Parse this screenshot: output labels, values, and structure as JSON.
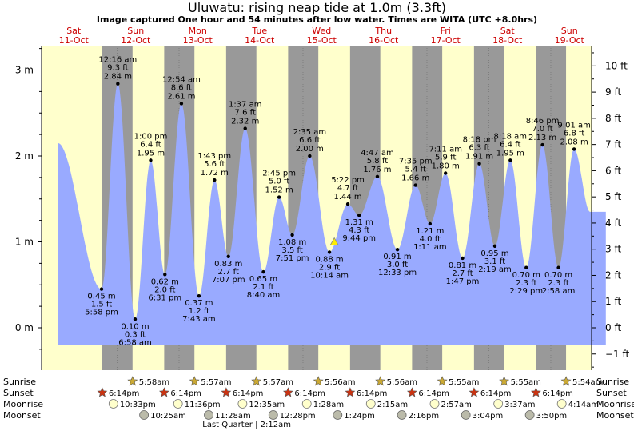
{
  "header": {
    "title": "Uluwatu: rising  neap tide at 1.0m (3.3ft)",
    "subtitle": "Image captured One hour and 54 minutes after low water. Times are WITA (UTC +8.0hrs)"
  },
  "colors": {
    "day_bg": "#ffffcc",
    "night_bg": "#999999",
    "tide_fill": "#99aaff",
    "day_label": "#cc0000",
    "sun_icon": "#ccaa33",
    "sunset_icon": "#cc3311",
    "moonrise_icon": "#ffffcc",
    "moonset_icon": "#bbbbaa"
  },
  "chart_data": {
    "type": "area",
    "title": "Uluwatu: rising  neap tide at 1.0m (3.3ft)",
    "ylabel_left": "m",
    "ylabel_right": "ft",
    "ylim": [
      -0.3,
      3.3
    ],
    "left_ticks": [
      "0 m",
      "1 m",
      "2 m",
      "3 m"
    ],
    "right_ticks": [
      "−1 ft",
      "0 ft",
      "1 ft",
      "2 ft",
      "3 ft",
      "4 ft",
      "5 ft",
      "6 ft",
      "7 ft",
      "8 ft",
      "9 ft",
      "10 ft"
    ],
    "x_unit": "hours since 2025-10-11 00:00 WITA",
    "days": [
      {
        "dow": "Sat",
        "date": "11-Oct"
      },
      {
        "dow": "Sun",
        "date": "12-Oct"
      },
      {
        "dow": "Mon",
        "date": "13-Oct"
      },
      {
        "dow": "Tue",
        "date": "14-Oct"
      },
      {
        "dow": "Wed",
        "date": "15-Oct"
      },
      {
        "dow": "Thu",
        "date": "16-Oct"
      },
      {
        "dow": "Fri",
        "date": "17-Oct"
      },
      {
        "dow": "Sat",
        "date": "18-Oct"
      },
      {
        "dow": "Sun",
        "date": "19-Oct"
      }
    ],
    "current_level_m": 1.0,
    "extremes": [
      {
        "kind": "low",
        "time": "5:58 pm",
        "m": 0.45,
        "m_label": "0.45 m",
        "ft": "1.5 ft"
      },
      {
        "kind": "high",
        "time": "12:16 am",
        "m": 2.84,
        "m_label": "2.84 m",
        "ft": "9.3 ft"
      },
      {
        "kind": "low",
        "time": "6:58 am",
        "m": 0.1,
        "m_label": "0.10 m",
        "ft": "0.3 ft"
      },
      {
        "kind": "high",
        "time": "1:00 pm",
        "m": 1.95,
        "m_label": "1.95 m",
        "ft": "6.4 ft"
      },
      {
        "kind": "low",
        "time": "6:31 pm",
        "m": 0.62,
        "m_label": "0.62 m",
        "ft": "2.0 ft"
      },
      {
        "kind": "high",
        "time": "12:54 am",
        "m": 2.61,
        "m_label": "2.61 m",
        "ft": "8.6 ft"
      },
      {
        "kind": "low",
        "time": "7:43 am",
        "m": 0.37,
        "m_label": "0.37 m",
        "ft": "1.2 ft"
      },
      {
        "kind": "high",
        "time": "1:43 pm",
        "m": 1.72,
        "m_label": "1.72 m",
        "ft": "5.6 ft"
      },
      {
        "kind": "low",
        "time": "7:07 pm",
        "m": 0.83,
        "m_label": "0.83 m",
        "ft": "2.7 ft"
      },
      {
        "kind": "high",
        "time": "1:37 am",
        "m": 2.32,
        "m_label": "2.32 m",
        "ft": "7.6 ft"
      },
      {
        "kind": "low",
        "time": "8:40 am",
        "m": 0.65,
        "m_label": "0.65 m",
        "ft": "2.1 ft"
      },
      {
        "kind": "high",
        "time": "2:45 pm",
        "m": 1.52,
        "m_label": "1.52 m",
        "ft": "5.0 ft"
      },
      {
        "kind": "low",
        "time": "7:51 pm",
        "m": 1.08,
        "m_label": "1.08 m",
        "ft": "3.5 ft"
      },
      {
        "kind": "high",
        "time": "2:35 am",
        "m": 2.0,
        "m_label": "2.00 m",
        "ft": "6.6 ft"
      },
      {
        "kind": "low",
        "time": "10:14 am",
        "m": 0.88,
        "m_label": "0.88 m",
        "ft": "2.9 ft"
      },
      {
        "kind": "high",
        "time": "5:22 pm",
        "m": 1.44,
        "m_label": "1.44 m",
        "ft": "4.7 ft"
      },
      {
        "kind": "low",
        "time": "9:44 pm",
        "m": 1.31,
        "m_label": "1.31 m",
        "ft": "4.3 ft"
      },
      {
        "kind": "high",
        "time": "4:47 am",
        "m": 1.76,
        "m_label": "1.76 m",
        "ft": "5.8 ft"
      },
      {
        "kind": "low",
        "time": "12:33 pm",
        "m": 0.91,
        "m_label": "0.91 m",
        "ft": "3.0 ft"
      },
      {
        "kind": "high",
        "time": "7:35 pm",
        "m": 1.66,
        "m_label": "1.66 m",
        "ft": "5.4 ft"
      },
      {
        "kind": "low",
        "time": "1:11 am",
        "m": 1.21,
        "m_label": "1.21 m",
        "ft": "4.0 ft"
      },
      {
        "kind": "high",
        "time": "7:11 am",
        "m": 1.8,
        "m_label": "1.80 m",
        "ft": "5.9 ft"
      },
      {
        "kind": "low",
        "time": "1:47 pm",
        "m": 0.81,
        "m_label": "0.81 m",
        "ft": "2.7 ft"
      },
      {
        "kind": "high",
        "time": "8:18 pm",
        "m": 1.91,
        "m_label": "1.91 m",
        "ft": "6.3 ft"
      },
      {
        "kind": "low",
        "time": "2:19 am",
        "m": 0.95,
        "m_label": "0.95 m",
        "ft": "3.1 ft"
      },
      {
        "kind": "high",
        "time": "8:18 am",
        "m": 1.95,
        "m_label": "1.95 m",
        "ft": "6.4 ft"
      },
      {
        "kind": "low",
        "time": "2:29 pm",
        "m": 0.7,
        "m_label": "0.70 m",
        "ft": "2.3 ft"
      },
      {
        "kind": "high",
        "time": "8:46 pm",
        "m": 2.13,
        "m_label": "2.13 m",
        "ft": "7.0 ft"
      },
      {
        "kind": "low",
        "time": "2:58 am",
        "m": 0.7,
        "m_label": "0.70 m",
        "ft": "2.3 ft"
      },
      {
        "kind": "high",
        "time": "9:01 am",
        "m": 2.08,
        "m_label": "2.08 m",
        "ft": "6.8 ft"
      }
    ],
    "astro": {
      "row_labels": [
        "Sunrise",
        "Sunset",
        "Moonrise",
        "Moonset"
      ],
      "sunrise": [
        "5:58am",
        "5:57am",
        "5:57am",
        "5:56am",
        "5:56am",
        "5:55am",
        "5:55am",
        "5:54am"
      ],
      "sunset": [
        "6:14pm",
        "6:14pm",
        "6:14pm",
        "6:14pm",
        "6:14pm",
        "6:14pm",
        "6:14pm",
        "6:14pm"
      ],
      "moonrise": [
        "10:33pm",
        "11:36pm",
        "12:35am",
        "1:28am",
        "2:15am",
        "2:57am",
        "3:37am",
        "4:14am"
      ],
      "moonset": [
        "10:25am",
        "11:28am",
        "12:28pm",
        "1:24pm",
        "2:16pm",
        "3:04pm",
        "3:50pm"
      ],
      "moon_phase": "Last Quarter | 2:12am"
    }
  }
}
